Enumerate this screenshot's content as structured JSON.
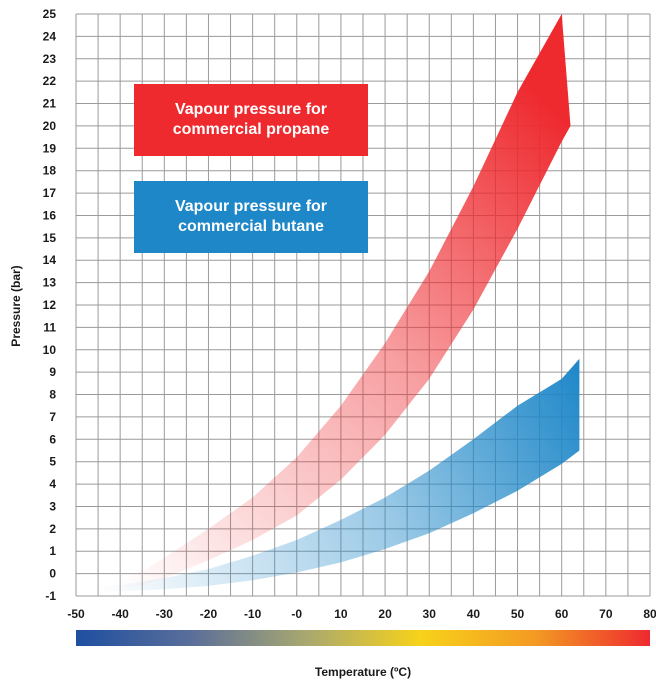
{
  "chart_data": {
    "type": "area",
    "xlabel": "Temperature (ºC)",
    "ylabel": "Pressure (bar)",
    "xlim": [
      -50,
      80
    ],
    "ylim": [
      -1,
      25
    ],
    "x_ticks": [
      "-50",
      "-40",
      "-30",
      "-20",
      "-10",
      "-0",
      "10",
      "20",
      "30",
      "40",
      "50",
      "60",
      "70",
      "80"
    ],
    "y_ticks": [
      "-1",
      "0",
      "1",
      "2",
      "3",
      "4",
      "5",
      "6",
      "7",
      "8",
      "9",
      "10",
      "11",
      "12",
      "13",
      "14",
      "15",
      "16",
      "17",
      "18",
      "19",
      "20",
      "21",
      "22",
      "23",
      "24",
      "25"
    ],
    "grid": true,
    "series": [
      {
        "name": "Vapour pressure for commercial propane",
        "color": "#ee2a2f",
        "x": [
          -40,
          -35,
          -30,
          -20,
          -10,
          0,
          10,
          20,
          30,
          40,
          50,
          60,
          62
        ],
        "upper": [
          -0.3,
          0.1,
          0.7,
          2.0,
          3.4,
          5.2,
          7.5,
          10.3,
          13.5,
          17.3,
          21.5,
          25.0,
          20.0
        ],
        "lower": [
          -0.7,
          -0.5,
          -0.2,
          0.6,
          1.5,
          2.6,
          4.2,
          6.2,
          8.7,
          11.8,
          15.4,
          19.3,
          20.0
        ]
      },
      {
        "name": "Vapour pressure for commercial butane",
        "color": "#1e87c8",
        "x": [
          -45,
          -40,
          -30,
          -20,
          -10,
          0,
          10,
          20,
          30,
          40,
          50,
          60,
          64
        ],
        "upper": [
          -0.6,
          -0.5,
          -0.2,
          0.2,
          0.8,
          1.5,
          2.4,
          3.4,
          4.6,
          6.0,
          7.5,
          8.7,
          9.6
        ],
        "lower": [
          -0.8,
          -0.8,
          -0.7,
          -0.55,
          -0.3,
          0.05,
          0.5,
          1.1,
          1.8,
          2.7,
          3.7,
          4.9,
          5.5
        ]
      }
    ],
    "legend": [
      {
        "label": "Vapour pressure for commercial propane",
        "color": "#ee2a2f"
      },
      {
        "label": "Vapour pressure for commercial butane",
        "color": "#1e87c8"
      }
    ],
    "colorbar": [
      "#1e4fa0",
      "#5a6e9a",
      "#a8a870",
      "#f7d21a",
      "#f39a23",
      "#ee2a2f"
    ]
  }
}
